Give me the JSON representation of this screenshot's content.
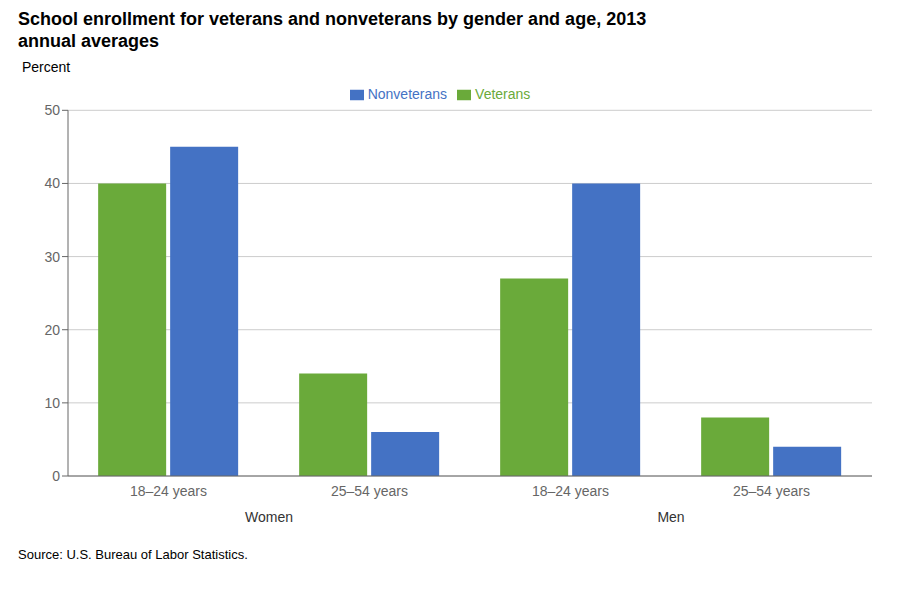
{
  "chart_data": {
    "type": "bar",
    "title": "School enrollment for veterans and nonveterans by gender and age, 2013",
    "subtitle": "annual averages",
    "ylabel": "Percent",
    "source": "Source: U.S. Bureau of Labor Statistics.",
    "categories": [
      "18–24 years",
      "25–54 years",
      "18–24 years",
      "25–54 years"
    ],
    "category_groups": [
      "Women",
      "Women",
      "Men",
      "Men"
    ],
    "series": [
      {
        "name": "Veterans",
        "color": "#6aaa3a",
        "values": [
          40,
          14,
          27,
          8
        ]
      },
      {
        "name": "Nonveterans",
        "color": "#4472c4",
        "values": [
          45,
          6,
          40,
          4
        ]
      }
    ],
    "ylim": [
      0,
      50
    ],
    "yticks": [
      0,
      10,
      20,
      30,
      40,
      50
    ],
    "grid": true,
    "legend": "top"
  }
}
